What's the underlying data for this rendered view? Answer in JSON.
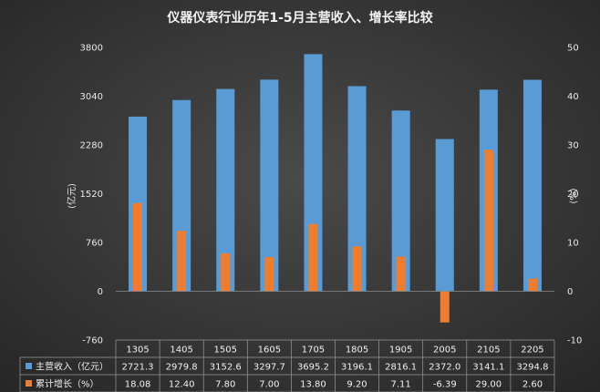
{
  "chart_data": {
    "type": "bar",
    "title": "仪器仪表行业历年1-5月主营收入、增长率比较",
    "categories": [
      "1305",
      "1405",
      "1505",
      "1605",
      "1705",
      "1805",
      "1905",
      "2005",
      "2105",
      "2205"
    ],
    "y_left": {
      "label": "(亿元)",
      "range": [
        -760,
        3800
      ],
      "ticks": [
        "-760",
        "0",
        "760",
        "1520",
        "2280",
        "3040",
        "3800"
      ]
    },
    "y_right": {
      "label": "(%)",
      "range": [
        -10,
        50
      ],
      "ticks": [
        "-10",
        "0",
        "10",
        "20",
        "30",
        "40",
        "50"
      ]
    },
    "series": [
      {
        "name": "主营收入（亿元）",
        "axis": "left",
        "color": "#5b9bd5",
        "values": [
          2721.3,
          2979.8,
          3152.6,
          3297.7,
          3695.2,
          3196.1,
          2816.1,
          2372.0,
          3141.1,
          3294.8
        ],
        "labels": [
          "2721.3",
          "2979.8",
          "3152.6",
          "3297.7",
          "3695.2",
          "3196.1",
          "2816.1",
          "2372.0",
          "3141.1",
          "3294.8"
        ]
      },
      {
        "name": "累计增长（%）",
        "axis": "right",
        "color": "#ed7d31",
        "values": [
          18.08,
          12.4,
          7.8,
          7.0,
          13.8,
          9.2,
          7.11,
          -6.39,
          29.0,
          2.6
        ],
        "labels": [
          "18.08",
          "12.40",
          "7.80",
          "7.00",
          "13.80",
          "9.20",
          "7.11",
          "-6.39",
          "29.00",
          "2.60"
        ]
      }
    ],
    "legend_placement": "data-table",
    "grid": false
  }
}
